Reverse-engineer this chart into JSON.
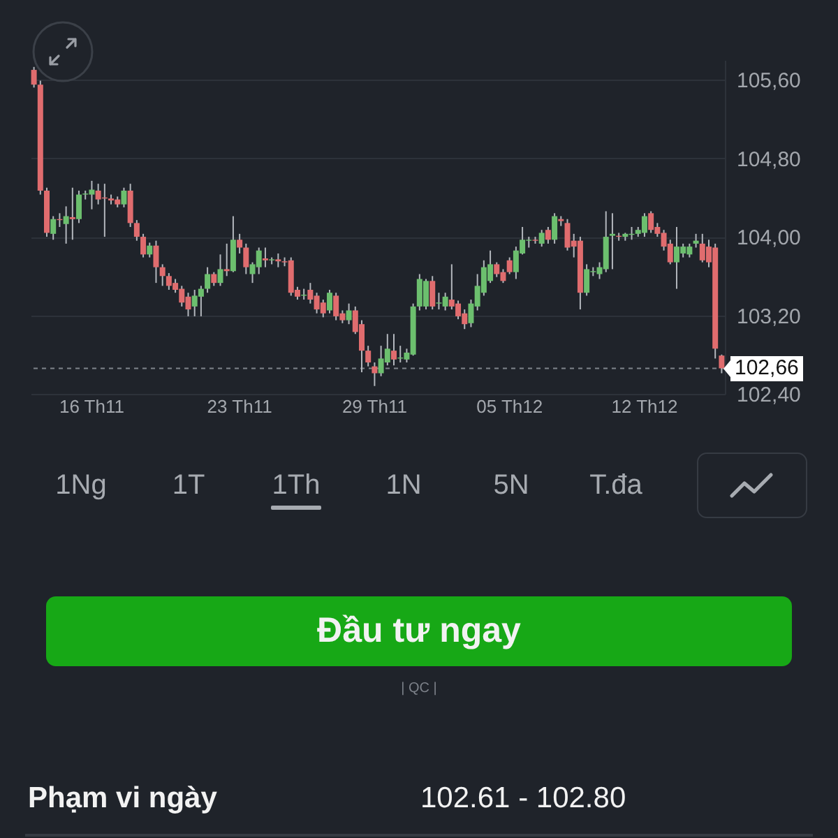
{
  "chart_data": [
    {
      "type": "candlestick",
      "categories": [
        null,
        null,
        null,
        null,
        null,
        null,
        null,
        null,
        null,
        "16 Th11",
        null,
        null,
        null,
        null,
        null,
        null,
        null,
        null,
        null,
        null,
        null,
        null,
        null,
        null,
        null,
        null,
        null,
        null,
        null,
        null,
        null,
        null,
        "23 Th11",
        null,
        null,
        null,
        null,
        null,
        null,
        null,
        null,
        null,
        null,
        null,
        null,
        null,
        null,
        null,
        null,
        null,
        null,
        null,
        null,
        "29 Th11",
        null,
        null,
        null,
        null,
        null,
        null,
        null,
        null,
        null,
        null,
        null,
        null,
        null,
        null,
        null,
        null,
        null,
        null,
        null,
        null,
        "05 Th12",
        null,
        null,
        null,
        null,
        null,
        null,
        null,
        null,
        null,
        null,
        null,
        null,
        null,
        null,
        null,
        null,
        null,
        null,
        null,
        null,
        "12 Th12",
        null,
        null,
        null,
        null,
        null,
        null,
        null,
        null,
        null,
        null,
        null,
        null
      ],
      "ohlc": [
        [
          105.7,
          105.73,
          105.52,
          105.55
        ],
        [
          105.55,
          105.59,
          104.43,
          104.47
        ],
        [
          104.47,
          104.5,
          104.0,
          104.04
        ],
        [
          104.03,
          104.21,
          103.97,
          104.18
        ],
        [
          104.18,
          104.24,
          104.1,
          104.17
        ],
        [
          104.13,
          104.31,
          103.93,
          104.21
        ],
        [
          104.2,
          104.5,
          103.97,
          104.18
        ],
        [
          104.18,
          104.47,
          104.14,
          104.43
        ],
        [
          104.43,
          104.47,
          104.38,
          104.44
        ],
        [
          104.43,
          104.57,
          104.28,
          104.48
        ],
        [
          104.47,
          104.54,
          104.33,
          104.38
        ],
        [
          104.4,
          104.54,
          104.0,
          104.39
        ],
        [
          104.39,
          104.43,
          104.33,
          104.37
        ],
        [
          104.38,
          104.41,
          104.3,
          104.33
        ],
        [
          104.33,
          104.5,
          104.3,
          104.47
        ],
        [
          104.47,
          104.54,
          104.1,
          104.14
        ],
        [
          104.14,
          104.17,
          103.96,
          104.0
        ],
        [
          104.0,
          104.03,
          103.79,
          103.82
        ],
        [
          103.82,
          103.94,
          103.79,
          103.91
        ],
        [
          103.91,
          103.96,
          103.53,
          103.69
        ],
        [
          103.69,
          103.72,
          103.5,
          103.6
        ],
        [
          103.6,
          103.63,
          103.46,
          103.5
        ],
        [
          103.53,
          103.57,
          103.43,
          103.46
        ],
        [
          103.47,
          103.5,
          103.29,
          103.33
        ],
        [
          103.39,
          103.43,
          103.19,
          103.26
        ],
        [
          103.29,
          103.46,
          103.19,
          103.4
        ],
        [
          103.39,
          103.5,
          103.19,
          103.47
        ],
        [
          103.47,
          103.69,
          103.43,
          103.62
        ],
        [
          103.62,
          103.64,
          103.5,
          103.53
        ],
        [
          103.53,
          103.82,
          103.5,
          103.67
        ],
        [
          103.67,
          103.93,
          103.6,
          103.65
        ],
        [
          103.65,
          104.21,
          103.64,
          103.97
        ],
        [
          103.97,
          104.03,
          103.83,
          103.89
        ],
        [
          103.89,
          103.93,
          103.62,
          103.69
        ],
        [
          103.62,
          103.74,
          103.53,
          103.72
        ],
        [
          103.69,
          103.89,
          103.62,
          103.86
        ],
        [
          103.78,
          103.89,
          103.69,
          103.76
        ],
        [
          103.76,
          103.79,
          103.72,
          103.77
        ],
        [
          103.77,
          103.83,
          103.69,
          103.75
        ],
        [
          103.75,
          103.79,
          103.7,
          103.74
        ],
        [
          103.76,
          103.79,
          103.4,
          103.43
        ],
        [
          103.46,
          103.49,
          103.36,
          103.39
        ],
        [
          103.4,
          103.47,
          103.36,
          103.41
        ],
        [
          103.46,
          103.53,
          103.32,
          103.36
        ],
        [
          103.4,
          103.43,
          103.22,
          103.26
        ],
        [
          103.33,
          103.36,
          103.18,
          103.22
        ],
        [
          103.25,
          103.46,
          103.22,
          103.43
        ],
        [
          103.4,
          103.43,
          103.15,
          103.19
        ],
        [
          103.22,
          103.25,
          103.12,
          103.15
        ],
        [
          103.15,
          103.32,
          103.11,
          103.25
        ],
        [
          103.25,
          103.29,
          103.01,
          103.03
        ],
        [
          103.11,
          103.15,
          102.62,
          102.84
        ],
        [
          102.84,
          102.89,
          102.68,
          102.72
        ],
        [
          102.68,
          102.72,
          102.48,
          102.61
        ],
        [
          102.61,
          102.89,
          102.58,
          102.76
        ],
        [
          102.72,
          103.01,
          102.69,
          102.86
        ],
        [
          102.84,
          103.01,
          102.69,
          102.75
        ],
        [
          102.76,
          102.89,
          102.72,
          102.77
        ],
        [
          102.75,
          102.86,
          102.72,
          102.82
        ],
        [
          102.8,
          103.32,
          102.79,
          103.29
        ],
        [
          103.29,
          103.62,
          103.25,
          103.57
        ],
        [
          103.29,
          103.57,
          103.26,
          103.55
        ],
        [
          103.55,
          103.6,
          103.26,
          103.29
        ],
        [
          103.32,
          103.43,
          103.26,
          103.33
        ],
        [
          103.29,
          103.43,
          103.25,
          103.39
        ],
        [
          103.36,
          103.72,
          103.26,
          103.29
        ],
        [
          103.32,
          103.35,
          103.16,
          103.19
        ],
        [
          103.22,
          103.26,
          103.06,
          103.11
        ],
        [
          103.12,
          103.36,
          103.08,
          103.32
        ],
        [
          103.29,
          103.62,
          103.25,
          103.5
        ],
        [
          103.43,
          103.76,
          103.4,
          103.69
        ],
        [
          103.55,
          103.86,
          103.53,
          103.72
        ],
        [
          103.72,
          103.74,
          103.59,
          103.62
        ],
        [
          103.64,
          103.67,
          103.53,
          103.55
        ],
        [
          103.76,
          103.79,
          103.62,
          103.64
        ],
        [
          103.64,
          103.9,
          103.57,
          103.86
        ],
        [
          103.83,
          104.1,
          103.82,
          103.97
        ],
        [
          103.96,
          104.0,
          103.89,
          103.97
        ],
        [
          103.97,
          104.0,
          103.93,
          103.96
        ],
        [
          103.93,
          104.07,
          103.9,
          104.04
        ],
        [
          104.07,
          104.1,
          103.93,
          103.97
        ],
        [
          103.97,
          104.24,
          103.93,
          104.21
        ],
        [
          104.18,
          104.21,
          104.11,
          104.16
        ],
        [
          104.14,
          104.18,
          103.86,
          103.89
        ],
        [
          103.96,
          104.03,
          103.79,
          103.9
        ],
        [
          103.96,
          104.0,
          103.26,
          103.43
        ],
        [
          103.43,
          103.72,
          103.4,
          103.67
        ],
        [
          103.64,
          103.69,
          103.6,
          103.65
        ],
        [
          103.62,
          103.74,
          103.57,
          103.69
        ],
        [
          103.67,
          104.26,
          103.64,
          104.0
        ],
        [
          104.01,
          104.24,
          103.67,
          104.03
        ],
        [
          104.01,
          104.04,
          103.96,
          104.0
        ],
        [
          104.0,
          104.04,
          103.96,
          104.03
        ],
        [
          104.02,
          104.1,
          103.97,
          104.03
        ],
        [
          104.03,
          104.1,
          104.0,
          104.07
        ],
        [
          104.04,
          104.24,
          104.0,
          104.21
        ],
        [
          104.24,
          104.26,
          104.04,
          104.07
        ],
        [
          104.1,
          104.14,
          104.0,
          104.03
        ],
        [
          104.04,
          104.07,
          103.86,
          103.9
        ],
        [
          103.93,
          103.97,
          103.72,
          103.74
        ],
        [
          103.74,
          104.1,
          103.47,
          103.9
        ],
        [
          103.83,
          103.93,
          103.79,
          103.9
        ],
        [
          103.82,
          103.93,
          103.79,
          103.9
        ],
        [
          103.93,
          104.03,
          103.89,
          103.96
        ],
        [
          103.93,
          104.03,
          103.74,
          103.76
        ],
        [
          103.9,
          103.97,
          103.69,
          103.74
        ],
        [
          103.89,
          103.93,
          102.76,
          102.86
        ],
        [
          102.79,
          102.8,
          102.61,
          102.66
        ]
      ],
      "colors": [
        "#e06c6e",
        "#e06c6e",
        "#e06c6e",
        "#6cbf6e",
        "#e06c6e",
        "#6cbf6e",
        "#e06c6e",
        "#6cbf6e",
        "#6cbf6e",
        "#6cbf6e",
        "#e06c6e",
        "#e06c6e",
        "#e06c6e",
        "#e06c6e",
        "#6cbf6e",
        "#e06c6e",
        "#e06c6e",
        "#e06c6e",
        "#6cbf6e",
        "#e06c6e",
        "#e06c6e",
        "#e06c6e",
        "#e06c6e",
        "#e06c6e",
        "#e06c6e",
        "#6cbf6e",
        "#6cbf6e",
        "#6cbf6e",
        "#e06c6e",
        "#6cbf6e",
        "#e06c6e",
        "#6cbf6e",
        "#e06c6e",
        "#e06c6e",
        "#6cbf6e",
        "#6cbf6e",
        "#e06c6e",
        "#6cbf6e",
        "#e06c6e",
        "#e06c6e",
        "#e06c6e",
        "#e06c6e",
        "#6cbf6e",
        "#e06c6e",
        "#e06c6e",
        "#e06c6e",
        "#6cbf6e",
        "#e06c6e",
        "#e06c6e",
        "#6cbf6e",
        "#e06c6e",
        "#e06c6e",
        "#e06c6e",
        "#e06c6e",
        "#6cbf6e",
        "#6cbf6e",
        "#e06c6e",
        "#6cbf6e",
        "#6cbf6e",
        "#6cbf6e",
        "#6cbf6e",
        "#6cbf6e",
        "#e06c6e",
        "#6cbf6e",
        "#6cbf6e",
        "#e06c6e",
        "#e06c6e",
        "#e06c6e",
        "#6cbf6e",
        "#6cbf6e",
        "#6cbf6e",
        "#6cbf6e",
        "#e06c6e",
        "#e06c6e",
        "#e06c6e",
        "#6cbf6e",
        "#6cbf6e",
        "#6cbf6e",
        "#e06c6e",
        "#6cbf6e",
        "#e06c6e",
        "#6cbf6e",
        "#e06c6e",
        "#e06c6e",
        "#e06c6e",
        "#e06c6e",
        "#6cbf6e",
        "#6cbf6e",
        "#6cbf6e",
        "#6cbf6e",
        "#6cbf6e",
        "#e06c6e",
        "#6cbf6e",
        "#6cbf6e",
        "#6cbf6e",
        "#6cbf6e",
        "#e06c6e",
        "#e06c6e",
        "#e06c6e",
        "#e06c6e",
        "#6cbf6e",
        "#6cbf6e",
        "#6cbf6e",
        "#6cbf6e",
        "#e06c6e",
        "#e06c6e",
        "#e06c6e",
        "#e06c6e"
      ],
      "ylim": [
        102.4,
        105.8
      ],
      "yticks": [
        {
          "value": 102.4,
          "label": "102,40"
        },
        {
          "value": 103.2,
          "label": "103,20"
        },
        {
          "value": 104,
          "label": "104,00"
        },
        {
          "value": 104.8,
          "label": "104,80"
        },
        {
          "value": 105.6,
          "label": "105,60"
        }
      ],
      "grid": "y",
      "ref_lines": [
        {
          "axis": "y",
          "value": 102.66,
          "label": "102,66",
          "line_style": "dashed",
          "color": "#80858c"
        }
      ]
    },
    {
      "type": "other",
      "annotations": [
        "1Ng",
        "1T",
        "1Th",
        "1N",
        "5N",
        "T.đa",
        "Đầu tư ngay",
        "| QC |",
        "Phạm vi ngày",
        "102.61 - 102.80"
      ]
    }
  ]
}
